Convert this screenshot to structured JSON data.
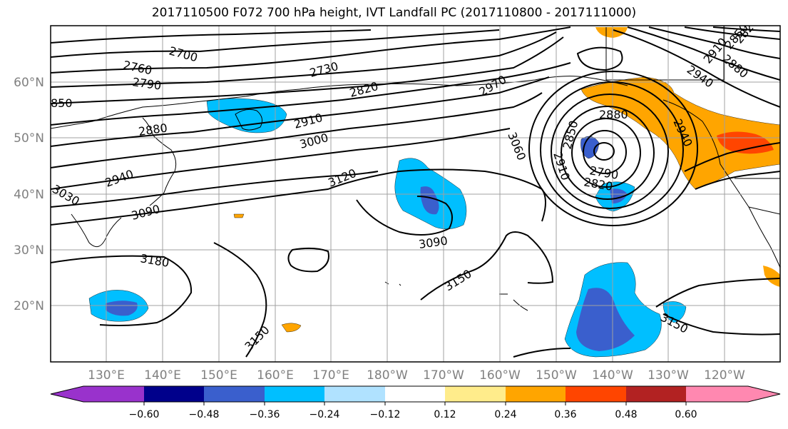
{
  "title": "2017110500 F072 700 hPa height, IVT Landfall PC (2017110800 - 2017111000)",
  "map": {
    "lat_labels": [
      "60°N",
      "50°N",
      "40°N",
      "30°N",
      "20°N"
    ],
    "lon_labels": [
      "130°E",
      "140°E",
      "150°E",
      "160°E",
      "170°E",
      "180°W",
      "170°W",
      "160°W",
      "150°W",
      "140°W",
      "130°W",
      "120°W"
    ],
    "contour_labels": [
      "2700",
      "2760",
      "2790",
      "2730",
      "2820",
      "2970",
      "850",
      "2880",
      "2910",
      "3000",
      "2940",
      "3060",
      "2880",
      "2850",
      "2790",
      "2820",
      "2910",
      "3120",
      "3030",
      "3090",
      "3090",
      "3180",
      "3150",
      "3150",
      "3150",
      "2820",
      "2850",
      "2880",
      "2910",
      "2940",
      "2940"
    ]
  },
  "colorbar": {
    "ticks": [
      "−0.60",
      "−0.48",
      "−0.36",
      "−0.24",
      "−0.12",
      "0.12",
      "0.24",
      "0.36",
      "0.48",
      "0.60"
    ],
    "colors": [
      "#9932cc",
      "#00008b",
      "#3a5fcd",
      "#00bfff",
      "#b0e2ff",
      "#ffffff",
      "#ffec8b",
      "#ffa500",
      "#ff4500",
      "#b22222",
      "#ff88b0"
    ]
  }
}
